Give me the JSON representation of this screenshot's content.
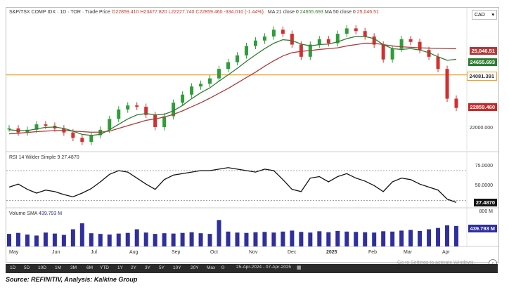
{
  "header": {
    "symbol": "S&P/TSX COMP IDX · 1D · TOR · Trade Price",
    "ohlc": "O22859.410 H23477.820 L22227.740 C22859.460 -334.010 (-1.44%)",
    "ma21_label": "MA 21 close 0",
    "ma21_value": "24655.693",
    "ma50_label": "MA 50 close 0",
    "ma50_value": "25,046.51"
  },
  "currency": "CAD",
  "price_axis": {
    "tag_ma50": "25,046.51",
    "tag_ma21": "24655.693",
    "tag_hline": "24081.391",
    "tag_last": "22859.460",
    "tick_22000": "22000.000"
  },
  "rsi": {
    "label": "RSI 14 Wilder Simple 9",
    "value": "27.4870",
    "tick_75": "75.0000",
    "tick_50": "50.0000"
  },
  "volume": {
    "label": "Volume SMA",
    "value": "439.793 M",
    "tick_800": "800 M"
  },
  "months": [
    "May",
    "Jun",
    "Jul",
    "Aug",
    "Sep",
    "Oct",
    "Nov",
    "Dec",
    "2025",
    "Feb",
    "Mar",
    "Apr"
  ],
  "toolbar": {
    "buttons": [
      "1D",
      "5D",
      "10D",
      "1M",
      "3M",
      "6M",
      "YTD",
      "1Y",
      "2Y",
      "3Y",
      "5Y",
      "10Y",
      "20Y",
      "Max"
    ],
    "range": "25-Apr-2024 - 07-Apr-2025"
  },
  "watermark": "Go to Settings to activate Windows.",
  "source": "Source: REFINITIV, Analysis: Kalkine Group",
  "colors": {
    "up": "#2e9e3a",
    "down": "#d32f2f",
    "ma21": "#2e7d32",
    "ma50": "#b03a3a",
    "hline": "#f0a020",
    "volume": "#2f2f9e"
  },
  "chart_data": {
    "type": "line",
    "series": [
      {
        "name": "S&P/TSX COMP IDX",
        "values": [
          22100,
          21950,
          22050,
          22250,
          22200,
          22100,
          21950,
          21750,
          21600,
          21850,
          22050,
          22450,
          22800,
          22950,
          22900,
          22600,
          22150,
          22550,
          23050,
          23350,
          23650,
          23750,
          23950,
          24300,
          24550,
          24800,
          25150,
          25350,
          25500,
          25750,
          25600,
          25200,
          24750,
          25200,
          25400,
          25250,
          25600,
          25800,
          25700,
          25500,
          25200,
          24650,
          25050,
          25400,
          25300,
          25000,
          24750,
          24300,
          23200,
          22859
        ]
      },
      {
        "name": "MA 21",
        "values": [
          22050,
          22020,
          22020,
          22080,
          22140,
          22150,
          22100,
          22000,
          21880,
          21840,
          21880,
          22050,
          22250,
          22450,
          22600,
          22650,
          22600,
          22620,
          22750,
          22950,
          23200,
          23420,
          23600,
          23850,
          24080,
          24320,
          24580,
          24820,
          25050,
          25250,
          25380,
          25350,
          25220,
          25150,
          25200,
          25220,
          25300,
          25420,
          25500,
          25500,
          25420,
          25200,
          25050,
          25020,
          25050,
          25000,
          24900,
          24750,
          24620,
          24655
        ]
      },
      {
        "name": "MA 50",
        "values": [
          21900,
          21920,
          21950,
          21980,
          22000,
          22020,
          22030,
          22000,
          21980,
          21960,
          21960,
          22000,
          22100,
          22200,
          22300,
          22400,
          22450,
          22520,
          22620,
          22750,
          22900,
          23050,
          23220,
          23400,
          23580,
          23780,
          23980,
          24180,
          24400,
          24600,
          24780,
          24900,
          24950,
          24980,
          25020,
          25050,
          25080,
          25150,
          25200,
          25250,
          25250,
          25200,
          25150,
          25120,
          25100,
          25080,
          25070,
          25060,
          25050,
          25046
        ]
      }
    ],
    "hline": 24081.391,
    "ylim": [
      21500,
      26200
    ],
    "rsi_values": [
      48,
      52,
      45,
      40,
      44,
      42,
      38,
      35,
      40,
      46,
      55,
      65,
      70,
      68,
      60,
      52,
      45,
      58,
      64,
      66,
      68,
      70,
      70,
      72,
      74,
      72,
      70,
      68,
      72,
      70,
      58,
      45,
      42,
      60,
      62,
      55,
      62,
      66,
      60,
      56,
      50,
      42,
      55,
      60,
      58,
      52,
      48,
      44,
      32,
      27.487
    ],
    "rsi_ylim": [
      25,
      85
    ],
    "volume_values": [
      380,
      410,
      360,
      330,
      420,
      390,
      350,
      520,
      700,
      400,
      380,
      360,
      390,
      410,
      520,
      420,
      380,
      400,
      390,
      410,
      430,
      400,
      380,
      800,
      450,
      420,
      410,
      430,
      440,
      420,
      450,
      480,
      440,
      420,
      460,
      430,
      470,
      450,
      440,
      430,
      420,
      460,
      450,
      480,
      500,
      470,
      520,
      560,
      640,
      620
    ],
    "volume_ylim": [
      0,
      850
    ]
  }
}
